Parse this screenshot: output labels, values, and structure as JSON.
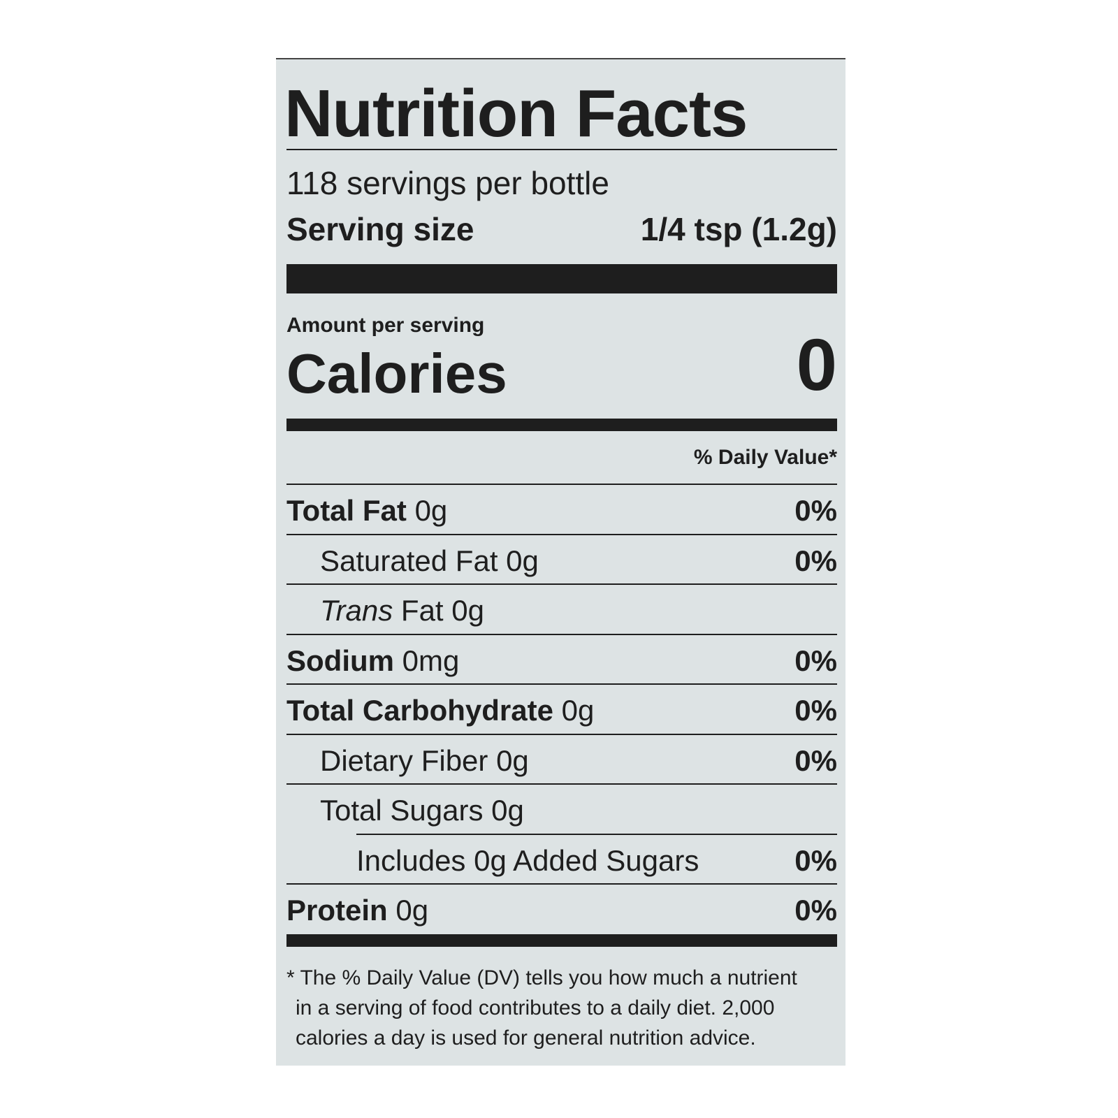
{
  "header": {
    "title": "Nutrition Facts",
    "servings": "118 servings per bottle",
    "serving_size_label": "Serving size",
    "serving_size_value": "1/4 tsp (1.2g)"
  },
  "calories": {
    "amount_per_serving": "Amount per serving",
    "label": "Calories",
    "value": "0"
  },
  "daily_value_header": "% Daily Value*",
  "rows": [
    {
      "label": "Total Fat",
      "amount": "0g",
      "dv": "0%"
    },
    {
      "label": "Saturated Fat",
      "amount": "0g",
      "dv": "0%"
    },
    {
      "label_italic": "Trans",
      "label": "Fat",
      "amount": "0g"
    },
    {
      "label": "Sodium",
      "amount": "0mg",
      "dv": "0%"
    },
    {
      "label": "Total Carbohydrate",
      "amount": "0g",
      "dv": "0%"
    },
    {
      "label": "Dietary Fiber",
      "amount": "0g",
      "dv": "0%"
    },
    {
      "label": "Total Sugars",
      "amount": "0g"
    },
    {
      "label": "Includes 0g Added Sugars",
      "dv": "0%"
    },
    {
      "label": "Protein",
      "amount": "0g",
      "dv": "0%"
    }
  ],
  "footnote": [
    "* The % Daily Value (DV) tells you how much a nutrient",
    "in a serving of food contributes to a daily diet. 2,000",
    "calories a day is used for general nutrition advice."
  ]
}
